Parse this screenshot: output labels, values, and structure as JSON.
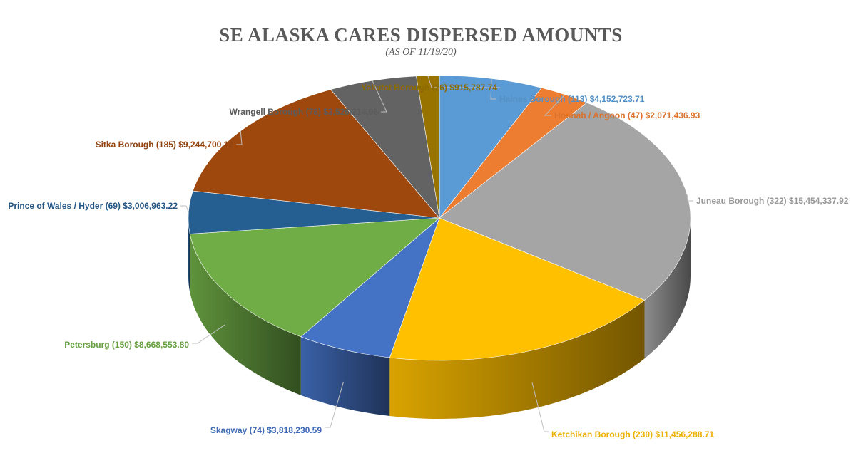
{
  "chart_data": {
    "type": "pie",
    "title": "SE ALASKA CARES DISPERSED AMOUNTS",
    "subtitle": "(AS OF 11/19/20)",
    "slices": [
      {
        "label": "Haines Borough (113) $4,152,723.71",
        "value": 4152723.71,
        "color": "#5B9BD5"
      },
      {
        "label": "Hoonah / Angoon (47) $2,071,436.93",
        "value": 2071436.93,
        "color": "#ED7D31"
      },
      {
        "label": "Juneau Borough (322) $15,454,337.92",
        "value": 15454337.92,
        "color": "#A5A5A5"
      },
      {
        "label": "Ketchikan Borough (230) $11,456,288.71",
        "value": 11456288.71,
        "color": "#FFC000"
      },
      {
        "label": "Skagway (74) $3,818,230.59",
        "value": 3818230.59,
        "color": "#4472C4"
      },
      {
        "label": "Petersburg (150) $8,668,553.80",
        "value": 8668553.8,
        "color": "#70AD47"
      },
      {
        "label": "Prince of Wales / Hyder (69) $3,006,963.22",
        "value": 3006963.22,
        "color": "#255E91"
      },
      {
        "label": "Sitka Borough (185) $9,244,700.12",
        "value": 9244700.12,
        "color": "#9E480E"
      },
      {
        "label": "Wrangell Borough (78) $3,526,214,98",
        "value": 3526214.98,
        "color": "#636363"
      },
      {
        "label": "Yakutat Borough (26) $915,787.74",
        "value": 915787.74,
        "color": "#997300"
      }
    ],
    "legend": "none"
  }
}
